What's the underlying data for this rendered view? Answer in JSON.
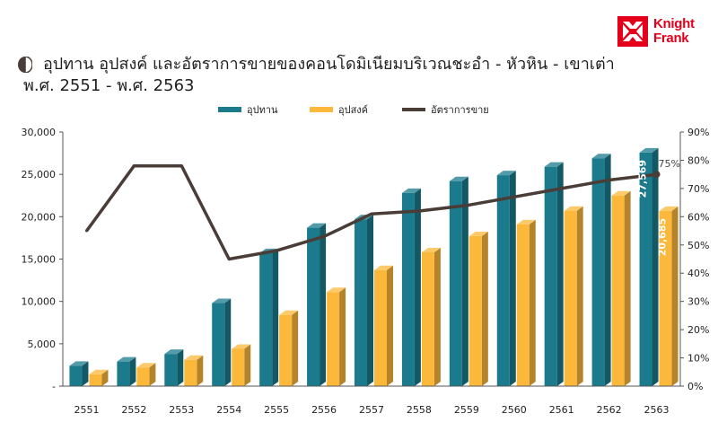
{
  "header": {
    "title_line1": "อุปทาน อุปสงค์ และอัตราการขายของคอนโดมิเนียมบริเวณชะอำ - หัวหิน - เขาเต่า",
    "title_line2": "พ.ศ. 2551 - พ.ศ. 2563",
    "logo_line1": "Knight",
    "logo_line2": "Frank"
  },
  "colors": {
    "supply": "#1b7a8c",
    "demand": "#fbb83a",
    "sales_rate": "#4a3d38",
    "brand": "#e4001b"
  },
  "chart_data": {
    "type": "bar",
    "title": "อุปทาน อุปสงค์ และอัตราการขายของคอนโดมิเนียมบริเวณชะอำ - หัวหิน - เขาเต่า พ.ศ. 2551 - พ.ศ. 2563",
    "categories": [
      "2551",
      "2552",
      "2553",
      "2554",
      "2555",
      "2556",
      "2557",
      "2558",
      "2559",
      "2560",
      "2561",
      "2562",
      "2563"
    ],
    "series": [
      {
        "name": "อุปทาน",
        "type": "bar",
        "axis": "left",
        "values": [
          2400,
          2900,
          3800,
          9800,
          15700,
          18700,
          19700,
          22800,
          24200,
          24900,
          25900,
          26900,
          27569
        ]
      },
      {
        "name": "อุปสงค์",
        "type": "bar",
        "axis": "left",
        "values": [
          1400,
          2200,
          3100,
          4400,
          8400,
          11100,
          13700,
          15800,
          17700,
          19100,
          20700,
          22500,
          20685
        ]
      },
      {
        "name": "อัตราการขาย",
        "type": "line",
        "axis": "right",
        "values": [
          55,
          78,
          78,
          45,
          48,
          53,
          61,
          62,
          64,
          67,
          70,
          73,
          75
        ]
      }
    ],
    "data_labels": {
      "supply_last": "27,569",
      "demand_last": "20,685",
      "rate_last": "75%"
    },
    "left_axis": {
      "ylim": [
        0,
        30000
      ],
      "ticks": [
        "-",
        "5,000",
        "10,000",
        "15,000",
        "20,000",
        "25,000",
        "30,000"
      ]
    },
    "right_axis": {
      "ylim": [
        0,
        90
      ],
      "ticks": [
        "0%",
        "10%",
        "20%",
        "30%",
        "40%",
        "50%",
        "60%",
        "70%",
        "80%",
        "90%"
      ]
    },
    "legend_position": "top-center",
    "grid": false
  }
}
